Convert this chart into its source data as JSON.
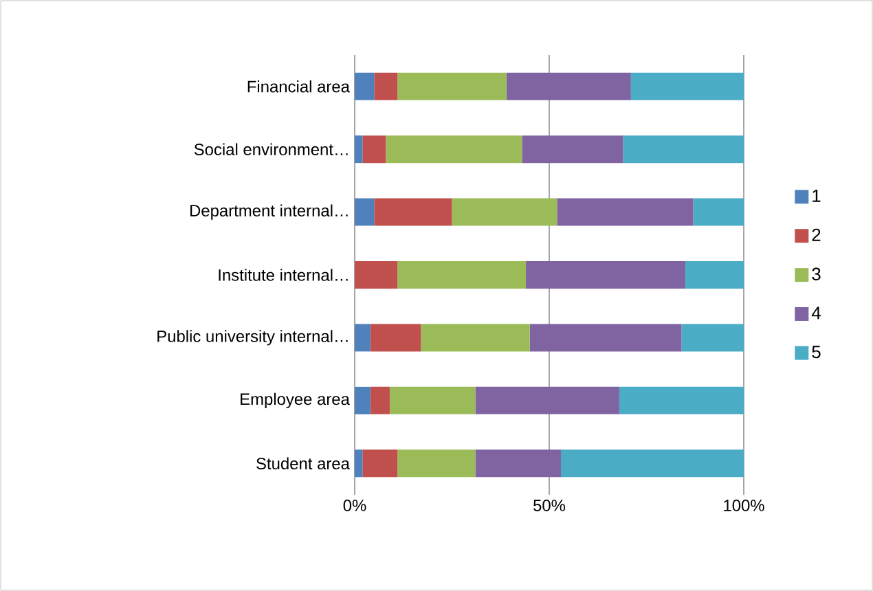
{
  "chart_data": {
    "type": "bar",
    "orientation": "horizontal",
    "stacked": true,
    "categories": [
      "Financial area",
      "Social environment…",
      "Department internal…",
      "Institute internal…",
      "Public university internal…",
      "Employee area",
      "Student area"
    ],
    "series": [
      {
        "name": "1",
        "color": "#4f81bd",
        "values": [
          5,
          2,
          5,
          0,
          4,
          4,
          2
        ]
      },
      {
        "name": "2",
        "color": "#c0504d",
        "values": [
          6,
          6,
          20,
          11,
          13,
          5,
          9
        ]
      },
      {
        "name": "3",
        "color": "#9bbb59",
        "values": [
          28,
          35,
          27,
          33,
          28,
          22,
          20
        ]
      },
      {
        "name": "4",
        "color": "#8064a2",
        "values": [
          32,
          26,
          35,
          41,
          39,
          37,
          22
        ]
      },
      {
        "name": "5",
        "color": "#4bacc6",
        "values": [
          29,
          31,
          13,
          15,
          16,
          32,
          47
        ]
      }
    ],
    "xlim": [
      0,
      100
    ],
    "xticks": [
      {
        "value": 0,
        "label": "0%"
      },
      {
        "value": 50,
        "label": "50%"
      },
      {
        "value": 100,
        "label": "100%"
      }
    ],
    "grid": "x",
    "legend": "right"
  }
}
